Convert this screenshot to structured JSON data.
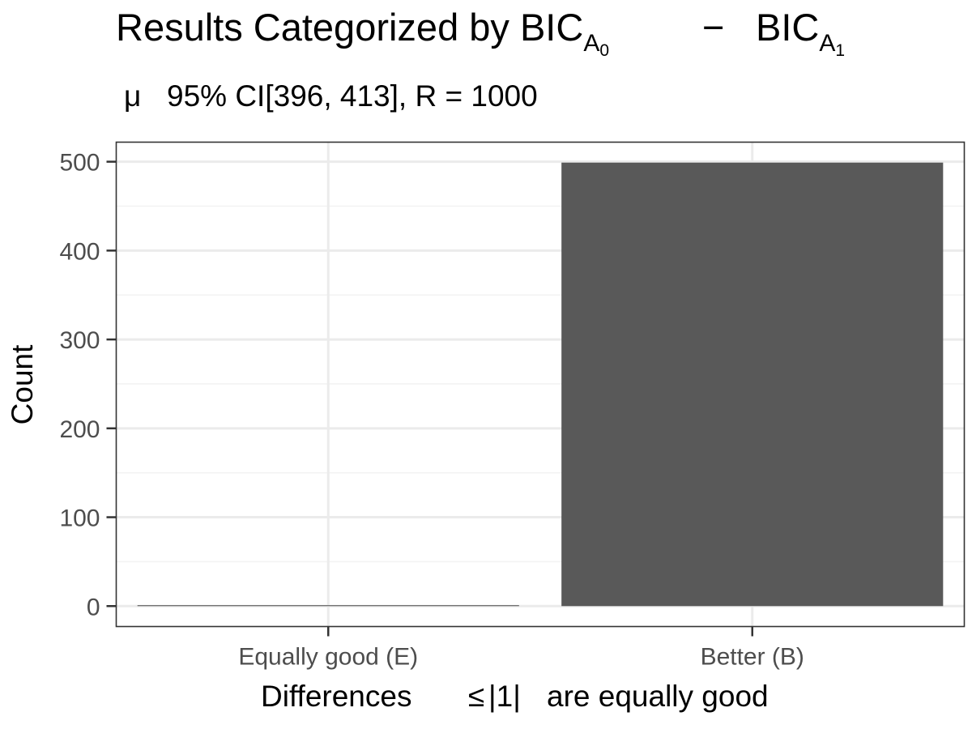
{
  "chart_data": {
    "type": "bar",
    "title": {
      "main": "Results Categorized by BIC",
      "sub_a": "A",
      "sub_a_index": "0",
      "minus": "−",
      "second": "BIC",
      "sub_b": "A",
      "sub_b_index": "1"
    },
    "subtitle": {
      "mu": "μ",
      "text": "95% CI[396, 413], R = 1000"
    },
    "xlabel": {
      "before": "Differences",
      "leq": "≤",
      "abs": "|1|",
      "after": "are equally good"
    },
    "ylabel": "Count",
    "categories": [
      "Equally good (E)",
      "Better (B)"
    ],
    "values": [
      1,
      499
    ],
    "ylim": [
      -23,
      522
    ],
    "y_ticks": [
      0,
      100,
      200,
      300,
      400,
      500
    ],
    "y_minor_ticks": [
      50,
      150,
      250,
      350,
      450
    ],
    "grid": true,
    "theme": "bw",
    "colors": {
      "bar": "#595959",
      "grid_major": "#ebebeb",
      "grid_minor": "#f3f3f3",
      "panel_border": "#333333",
      "tick_text": "#4d4d4d",
      "title_text": "#000000"
    }
  }
}
